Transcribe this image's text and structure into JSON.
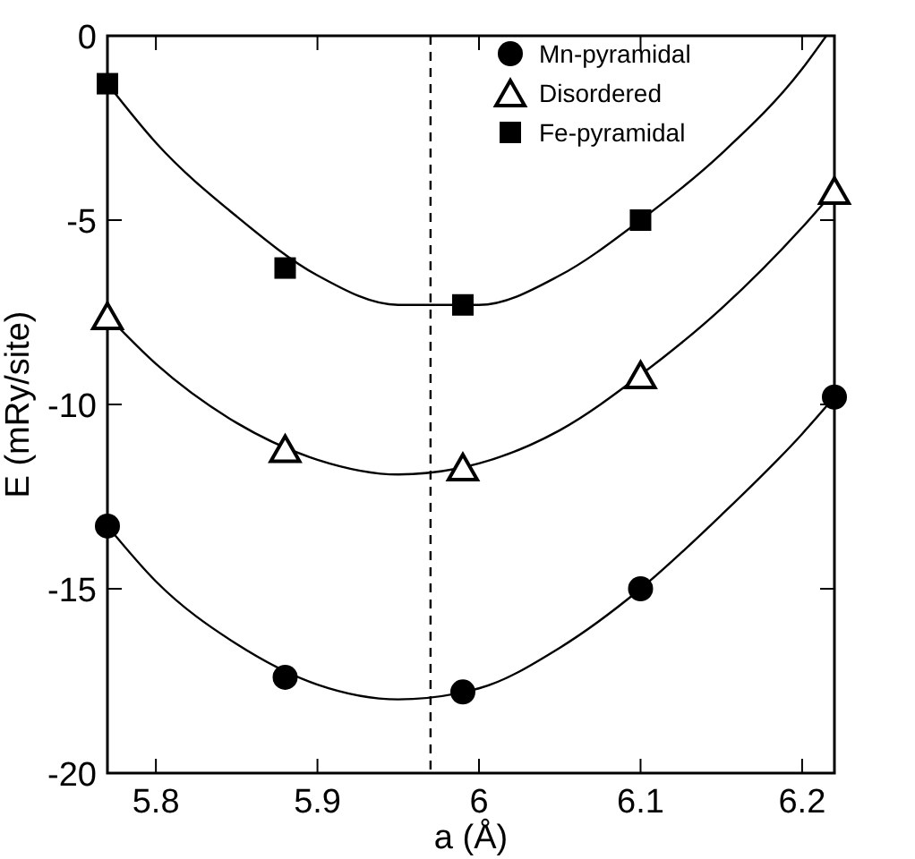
{
  "chart_data": {
    "type": "scatter",
    "xlabel": "a (Å)",
    "ylabel": "E (mRy/site)",
    "xlim": [
      5.77,
      6.22
    ],
    "ylim": [
      -20,
      0
    ],
    "xticks": [
      5.8,
      5.9,
      6,
      6.1,
      6.2
    ],
    "yticks": [
      0,
      -5,
      -10,
      -15,
      -20
    ],
    "grid": false,
    "legend": "top right",
    "ref_lines": [
      {
        "axis": "x",
        "value": 5.97,
        "color": "#000000",
        "line_style": "dashed"
      }
    ],
    "series": [
      {
        "name": "Mn-pyramidal",
        "color": "#000000",
        "marker": "circle",
        "x": [
          5.77,
          5.88,
          5.99,
          6.1,
          6.22
        ],
        "values": [
          -13.3,
          -17.4,
          -17.8,
          -15.0,
          -9.8
        ]
      },
      {
        "name": "Disordered",
        "color": "#000000",
        "marker": "triangle",
        "x": [
          5.77,
          5.88,
          5.99,
          6.1,
          6.22
        ],
        "values": [
          -7.6,
          -11.2,
          -11.7,
          -9.2,
          -4.2
        ]
      },
      {
        "name": "Fe-pyramidal",
        "color": "#000000",
        "marker": "square",
        "x": [
          5.77,
          5.88,
          5.99,
          6.1
        ],
        "values": [
          -1.3,
          -6.3,
          -7.3,
          -5.0
        ]
      },
      {
        "type": "line",
        "color": "#000000",
        "marker": "none",
        "x": [
          5.77,
          5.8,
          5.85,
          5.9,
          5.95,
          6.0,
          6.05,
          6.1,
          6.15,
          6.2,
          6.22
        ],
        "values": [
          -13.3,
          -14.8,
          -16.5,
          -17.6,
          -18.0,
          -17.7,
          -16.6,
          -15.0,
          -13.0,
          -10.8,
          -9.8
        ]
      },
      {
        "type": "line",
        "color": "#000000",
        "marker": "none",
        "x": [
          5.77,
          5.8,
          5.85,
          5.9,
          5.95,
          6.0,
          6.05,
          6.1,
          6.15,
          6.2,
          6.22
        ],
        "values": [
          -7.6,
          -8.9,
          -10.5,
          -11.5,
          -11.9,
          -11.6,
          -10.7,
          -9.2,
          -7.4,
          -5.2,
          -4.2
        ]
      },
      {
        "type": "line",
        "color": "#000000",
        "marker": "none",
        "x": [
          5.77,
          5.8,
          5.85,
          5.9,
          5.95,
          6.0,
          6.05,
          6.1,
          6.15,
          6.2,
          6.215
        ],
        "values": [
          -1.3,
          -2.9,
          -4.9,
          -6.5,
          -7.3,
          -7.3,
          -6.5,
          -5.0,
          -3.2,
          -0.9,
          0
        ]
      }
    ]
  }
}
